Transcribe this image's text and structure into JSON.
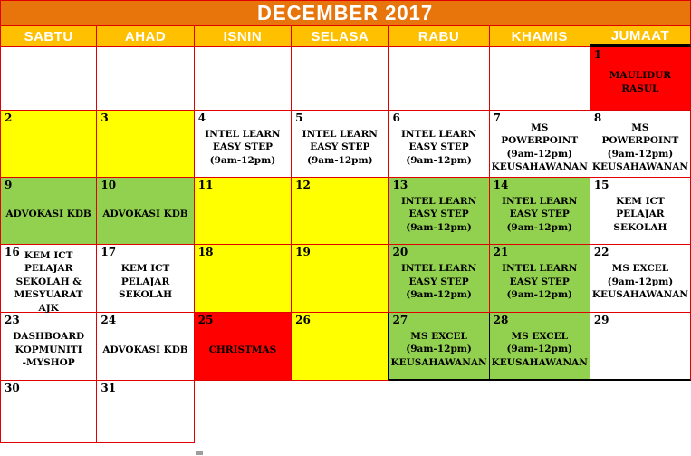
{
  "title": "DECEMBER 2017",
  "colors": {
    "title_bg": "#E8750C",
    "header_bg": "#FFC000",
    "border": "#E00000",
    "white": "#FFFFFF",
    "yellow": "#FFFF00",
    "green": "#92D050",
    "red": "#FF0000",
    "none": "transparent",
    "handle": "#9E9E9E"
  },
  "day_headers": [
    {
      "label": "SABTU"
    },
    {
      "label": "AHAD"
    },
    {
      "label": "ISNIN"
    },
    {
      "label": "SELASA"
    },
    {
      "label": "RABU"
    },
    {
      "label": "KHAMIS"
    },
    {
      "label": "JUMAAT",
      "black_underline": true
    }
  ],
  "weeks": [
    {
      "cells": [
        {
          "day": "",
          "event": "",
          "bg": "white"
        },
        {
          "day": "",
          "event": "",
          "bg": "white"
        },
        {
          "day": "",
          "event": "",
          "bg": "white"
        },
        {
          "day": "",
          "event": "",
          "bg": "white"
        },
        {
          "day": "",
          "event": "",
          "bg": "white"
        },
        {
          "day": "",
          "event": "",
          "bg": "white"
        },
        {
          "day": "1",
          "event": "MAULIDUR\nRASUL",
          "bg": "red"
        }
      ]
    },
    {
      "cells": [
        {
          "day": "2",
          "event": "",
          "bg": "yellow"
        },
        {
          "day": "3",
          "event": "",
          "bg": "yellow"
        },
        {
          "day": "4",
          "event": "INTEL LEARN\nEASY STEP\n(9am-12pm)",
          "bg": "white"
        },
        {
          "day": "5",
          "event": "INTEL LEARN\nEASY STEP\n(9am-12pm)",
          "bg": "white"
        },
        {
          "day": "6",
          "event": "INTEL LEARN\nEASY STEP\n(9am-12pm)",
          "bg": "white"
        },
        {
          "day": "7",
          "event": "MS POWERPOINT\n(9am-12pm)\nKEUSAHAWANAN",
          "bg": "white"
        },
        {
          "day": "8",
          "event": "MS POWERPOINT\n(9am-12pm)\nKEUSAHAWANAN",
          "bg": "white"
        }
      ]
    },
    {
      "cells": [
        {
          "day": "9",
          "event": "ADVOKASI KDB",
          "bg": "green"
        },
        {
          "day": "10",
          "event": "ADVOKASI KDB",
          "bg": "green"
        },
        {
          "day": "11",
          "event": "",
          "bg": "yellow"
        },
        {
          "day": "12",
          "event": "",
          "bg": "yellow"
        },
        {
          "day": "13",
          "event": "INTEL LEARN\nEASY STEP\n(9am-12pm)",
          "bg": "green"
        },
        {
          "day": "14",
          "event": "INTEL LEARN\nEASY STEP\n(9am-12pm)",
          "bg": "green"
        },
        {
          "day": "15",
          "event": "KEM ICT PELAJAR\nSEKOLAH",
          "bg": "white"
        }
      ]
    },
    {
      "cells": [
        {
          "day": "16",
          "event": "KEM ICT PELAJAR\nSEKOLAH &\nMESYUARAT AJK",
          "bg": "white"
        },
        {
          "day": "17",
          "event": "KEM ICT PELAJAR\nSEKOLAH",
          "bg": "white"
        },
        {
          "day": "18",
          "event": "",
          "bg": "yellow"
        },
        {
          "day": "19",
          "event": "",
          "bg": "yellow"
        },
        {
          "day": "20",
          "event": "INTEL LEARN\nEASY STEP\n(9am-12pm)",
          "bg": "green"
        },
        {
          "day": "21",
          "event": "INTEL LEARN\nEASY STEP\n(9am-12pm)",
          "bg": "green"
        },
        {
          "day": "22",
          "event": "MS EXCEL\n(9am-12pm)\nKEUSAHAWANAN",
          "bg": "white"
        }
      ]
    },
    {
      "cells": [
        {
          "day": "23",
          "event": "DASHBOARD\nKOPMUNITI\n-MYSHOP",
          "bg": "white"
        },
        {
          "day": "24",
          "event": "ADVOKASI KDB",
          "bg": "white"
        },
        {
          "day": "25",
          "event": "CHRISTMAS",
          "bg": "red"
        },
        {
          "day": "26",
          "event": "",
          "bg": "yellow",
          "black": [
            "right"
          ]
        },
        {
          "day": "27",
          "event": "MS EXCEL\n(9am-12pm)\nKEUSAHAWANAN",
          "bg": "green",
          "black": [
            "right",
            "bottom"
          ]
        },
        {
          "day": "28",
          "event": "MS EXCEL\n(9am-12pm)\nKEUSAHAWANAN",
          "bg": "green",
          "black": [
            "right",
            "bottom"
          ]
        },
        {
          "day": "29",
          "event": "",
          "bg": "white",
          "black": [
            "bottom"
          ]
        }
      ]
    },
    {
      "cells": [
        {
          "day": "30",
          "event": "",
          "bg": "white"
        },
        {
          "day": "31",
          "event": "",
          "bg": "white"
        },
        {
          "day": "",
          "event": "",
          "bg": "none"
        },
        {
          "day": "",
          "event": "",
          "bg": "none"
        },
        {
          "day": "",
          "event": "",
          "bg": "none"
        },
        {
          "day": "",
          "event": "",
          "bg": "none"
        },
        {
          "day": "",
          "event": "",
          "bg": "none"
        }
      ]
    }
  ]
}
